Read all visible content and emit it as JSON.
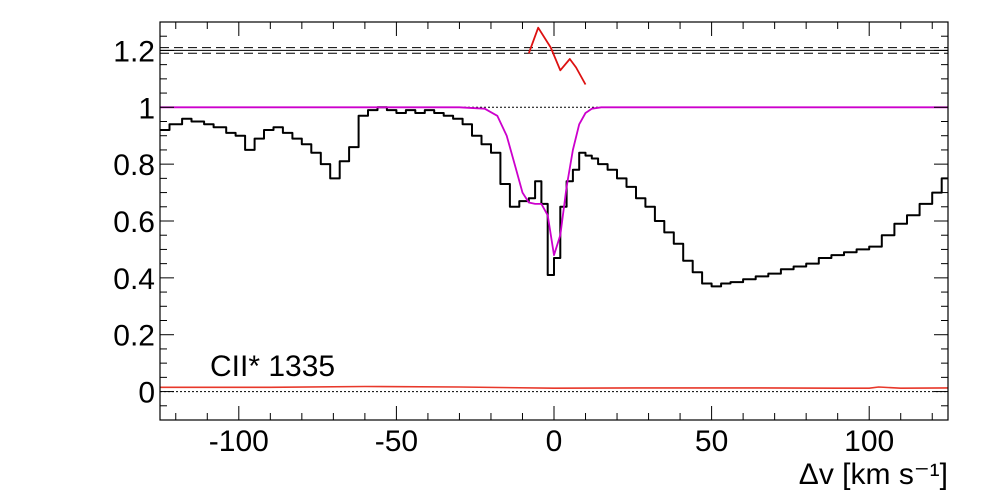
{
  "chart_data": {
    "type": "line",
    "title": "",
    "annotation": "CII* 1335",
    "xlabel": "Δv [km s⁻¹]",
    "ylabel": "",
    "xlim": [
      -125,
      125
    ],
    "ylim": [
      -0.1,
      1.3
    ],
    "x_ticks": [
      -100,
      -50,
      0,
      50,
      100
    ],
    "x_tick_labels": [
      "-100",
      "-50",
      "0",
      "50",
      "100"
    ],
    "y_ticks": [
      0,
      0.2,
      0.4,
      0.6,
      0.8,
      1,
      1.2
    ],
    "y_tick_labels": [
      "0",
      "0.2",
      "0.4",
      "0.6",
      "0.8",
      "1",
      "1.2"
    ],
    "colors": {
      "data": "#000000",
      "model": "#cc00cc",
      "error": "#e8382a",
      "residual": "#dd1111",
      "reference": "#000000"
    },
    "reference_lines": [
      {
        "y": 1.0,
        "style": "dotted"
      },
      {
        "y": 0.0,
        "style": "dotted"
      },
      {
        "y": 1.19,
        "style": "dashed"
      },
      {
        "y": 1.2,
        "style": "solid"
      },
      {
        "y": 1.21,
        "style": "dashed"
      }
    ],
    "series": [
      {
        "id": "flux",
        "kind": "step",
        "x": [
          -125,
          -122,
          -118,
          -115,
          -111,
          -108,
          -104,
          -101,
          -98,
          -95,
          -92,
          -89,
          -86,
          -83,
          -80,
          -77,
          -74,
          -71,
          -68,
          -65,
          -62,
          -59,
          -56,
          -53,
          -50,
          -47,
          -44,
          -41,
          -38,
          -35,
          -32,
          -29,
          -26,
          -23,
          -20,
          -17,
          -14,
          -11,
          -8,
          -6,
          -4,
          -2,
          0,
          2,
          4,
          6,
          8,
          10,
          12,
          14,
          17,
          20,
          23,
          26,
          29,
          32,
          35,
          38,
          41,
          44,
          47,
          50,
          53,
          56,
          60,
          64,
          68,
          72,
          76,
          80,
          84,
          88,
          92,
          96,
          100,
          104,
          108,
          112,
          116,
          120,
          123
        ],
        "y": [
          0.92,
          0.94,
          0.96,
          0.95,
          0.94,
          0.93,
          0.91,
          0.9,
          0.85,
          0.89,
          0.92,
          0.93,
          0.91,
          0.89,
          0.87,
          0.84,
          0.8,
          0.75,
          0.81,
          0.86,
          0.97,
          0.99,
          1.0,
          0.99,
          0.98,
          0.99,
          0.98,
          0.99,
          0.98,
          0.97,
          0.96,
          0.94,
          0.9,
          0.87,
          0.84,
          0.73,
          0.65,
          0.67,
          0.68,
          0.74,
          0.66,
          0.41,
          0.47,
          0.65,
          0.74,
          0.78,
          0.84,
          0.83,
          0.82,
          0.8,
          0.78,
          0.75,
          0.72,
          0.68,
          0.65,
          0.6,
          0.56,
          0.52,
          0.46,
          0.42,
          0.38,
          0.37,
          0.38,
          0.385,
          0.395,
          0.405,
          0.415,
          0.43,
          0.44,
          0.45,
          0.47,
          0.48,
          0.49,
          0.5,
          0.51,
          0.55,
          0.59,
          0.62,
          0.66,
          0.7,
          0.75
        ]
      },
      {
        "id": "model",
        "kind": "line",
        "x": [
          -125,
          -30,
          -22,
          -18,
          -15,
          -12,
          -10,
          -8,
          -6,
          -4,
          -2,
          0,
          2,
          4,
          6,
          8,
          10,
          12,
          15,
          20,
          125
        ],
        "y": [
          1.0,
          1.0,
          0.995,
          0.97,
          0.9,
          0.78,
          0.7,
          0.665,
          0.66,
          0.66,
          0.62,
          0.48,
          0.55,
          0.72,
          0.85,
          0.94,
          0.98,
          0.995,
          1.0,
          1.0,
          1.0
        ]
      },
      {
        "id": "error",
        "kind": "line",
        "x": [
          -125,
          -90,
          -60,
          -30,
          0,
          30,
          60,
          90,
          100,
          103,
          110,
          125
        ],
        "y": [
          0.015,
          0.015,
          0.018,
          0.016,
          0.012,
          0.013,
          0.013,
          0.012,
          0.012,
          0.016,
          0.012,
          0.013
        ]
      },
      {
        "id": "residual",
        "kind": "line",
        "x": [
          -8,
          -5,
          -1,
          2,
          5,
          7,
          10
        ],
        "y": [
          1.19,
          1.28,
          1.21,
          1.13,
          1.17,
          1.14,
          1.08
        ]
      }
    ]
  }
}
